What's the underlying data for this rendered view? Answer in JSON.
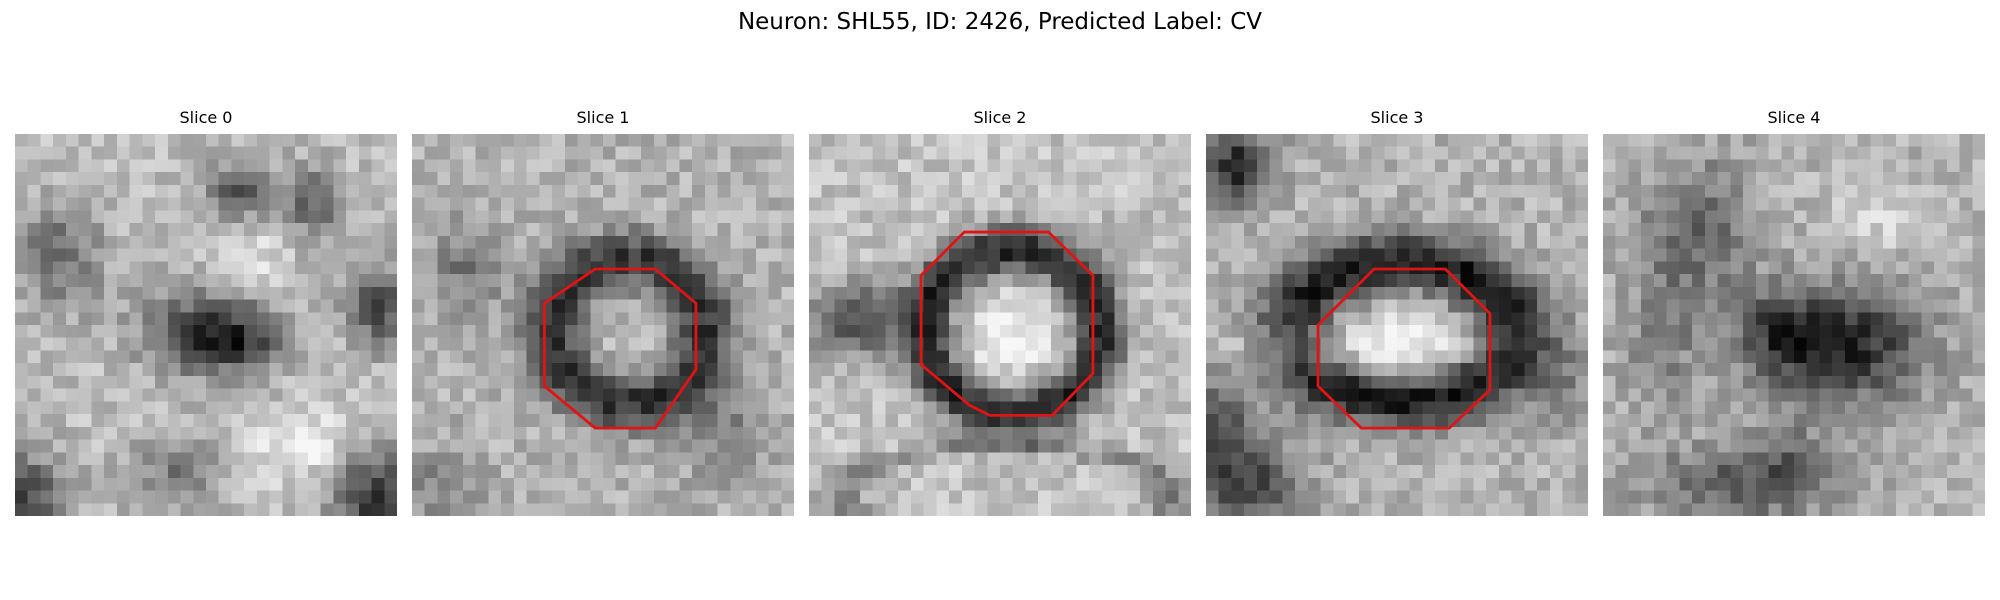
{
  "figure": {
    "title": "Neuron: SHL55, ID: 2426, Predicted Label: CV",
    "contour_color": "#e01414"
  },
  "slices": [
    {
      "title": "Slice 0",
      "has_contour": false
    },
    {
      "title": "Slice 1",
      "has_contour": true
    },
    {
      "title": "Slice 2",
      "has_contour": true
    },
    {
      "title": "Slice 3",
      "has_contour": true
    },
    {
      "title": "Slice 4",
      "has_contour": false
    }
  ]
}
